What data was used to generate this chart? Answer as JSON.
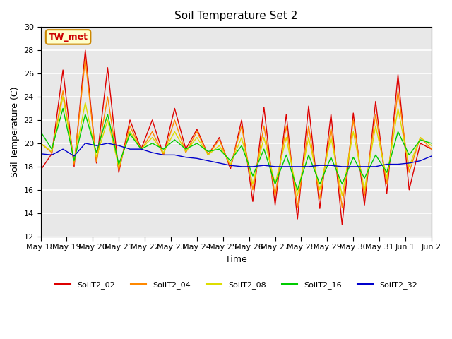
{
  "title": "Soil Temperature Set 2",
  "xlabel": "Time",
  "ylabel": "Soil Temperature (C)",
  "ylim": [
    12,
    30
  ],
  "yticks": [
    12,
    14,
    16,
    18,
    20,
    22,
    24,
    26,
    28,
    30
  ],
  "bg_color": "#e8e8e8",
  "annotation_text": "TW_met",
  "annotation_color": "#cc0000",
  "annotation_bg": "#ffffcc",
  "annotation_border": "#cc8800",
  "series_colors": {
    "SoilT2_02": "#dd0000",
    "SoilT2_04": "#ff8800",
    "SoilT2_08": "#dddd00",
    "SoilT2_16": "#00cc00",
    "SoilT2_32": "#0000cc"
  },
  "x_labels": [
    "May 18",
    "May 19",
    "May 20",
    "May 21",
    "May 22",
    "May 23",
    "May 24",
    "May 25",
    "May 26",
    "May 27",
    "May 28",
    "May 29",
    "May 30",
    "May 31",
    "Jun 1",
    "Jun 2"
  ],
  "SoilT2_02": [
    17.7,
    19.1,
    26.3,
    18.0,
    28.0,
    18.3,
    26.5,
    17.5,
    22.0,
    19.5,
    22.0,
    19.0,
    23.0,
    19.5,
    21.2,
    19.0,
    20.5,
    17.8,
    22.0,
    15.0,
    23.1,
    14.7,
    22.5,
    13.5,
    23.2,
    14.4,
    22.5,
    13.0,
    22.6,
    14.7,
    23.6,
    15.7,
    25.9,
    16.0,
    20.0,
    19.5
  ],
  "SoilT2_04": [
    20.0,
    19.2,
    24.5,
    18.2,
    27.2,
    18.4,
    24.0,
    17.7,
    21.5,
    19.4,
    21.0,
    19.0,
    22.0,
    19.2,
    21.0,
    19.0,
    20.3,
    18.0,
    21.5,
    16.0,
    21.5,
    15.5,
    21.5,
    14.5,
    21.5,
    15.2,
    21.3,
    14.5,
    22.0,
    15.5,
    22.5,
    16.5,
    24.5,
    17.5,
    20.5,
    19.5
  ],
  "SoilT2_08": [
    20.0,
    19.3,
    24.0,
    18.5,
    23.5,
    18.8,
    22.0,
    18.0,
    21.0,
    19.5,
    20.5,
    19.2,
    21.0,
    19.3,
    20.5,
    19.0,
    19.8,
    18.2,
    20.5,
    16.5,
    20.5,
    16.5,
    20.5,
    15.5,
    20.5,
    16.0,
    20.5,
    15.5,
    21.0,
    16.0,
    21.5,
    17.0,
    23.0,
    18.0,
    20.5,
    19.8
  ],
  "SoilT2_16": [
    21.0,
    19.5,
    23.0,
    18.5,
    22.5,
    19.2,
    22.5,
    18.2,
    20.8,
    19.5,
    20.0,
    19.5,
    20.3,
    19.5,
    20.0,
    19.3,
    19.5,
    18.5,
    19.8,
    17.2,
    19.5,
    16.5,
    19.0,
    16.0,
    19.0,
    16.5,
    18.8,
    16.5,
    18.8,
    17.0,
    19.0,
    17.5,
    21.0,
    19.0,
    20.3,
    20.0
  ],
  "SoilT2_32": [
    19.1,
    19.0,
    19.5,
    18.9,
    20.0,
    19.8,
    20.0,
    19.8,
    19.5,
    19.5,
    19.2,
    19.0,
    19.0,
    18.8,
    18.7,
    18.5,
    18.3,
    18.1,
    18.0,
    18.0,
    18.1,
    18.0,
    18.0,
    18.0,
    18.0,
    18.1,
    18.1,
    18.0,
    18.0,
    18.0,
    18.0,
    18.2,
    18.2,
    18.3,
    18.5,
    18.9
  ]
}
